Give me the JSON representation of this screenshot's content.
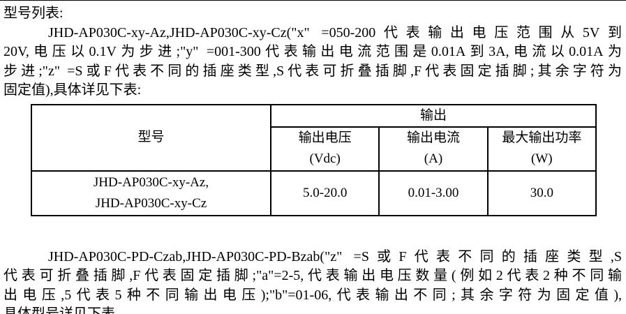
{
  "doc": {
    "title": "型号列表:",
    "para1": {
      "lines": [
        "JHD-AP030C-xy-Az,JHD-AP030C-xy-Cz(\"x\" =050-200代表输出电压范围从5V到",
        "20V,电压以0.1V为步进;\"y\" =001-300代表输出电流范围是0.01A到3A,电流以0.01A为",
        "步进;\"z\" =S或F代表不同的插座类型,S代表可折叠插脚,F代表固定插脚;其余字符为",
        "固定值),具体详见下表:"
      ]
    },
    "para2": {
      "lines": [
        "JHD-AP030C-PD-Czab,JHD-AP030C-PD-Bzab(\"z\" =S或F代表不同的插座类型,S",
        "代表可折叠插脚,F代表固定插脚;\"a\"=2-5,代表输出电压数量(例如2代表2种不同输",
        "出电压,5代表5种不同输出电压);\"b\"=01-06,代表输出不同;其余字符为固定值),",
        "具体型号详见下表"
      ]
    }
  },
  "table": {
    "model_header": "型号",
    "output_header": "输出",
    "columns": [
      {
        "line1": "输出电压",
        "line2": "(Vdc)"
      },
      {
        "line1": "输出电流",
        "line2": "(A)"
      },
      {
        "line1": "最大输出功率",
        "line2": "(W)"
      }
    ],
    "rows": [
      {
        "model_line1": "JHD-AP030C-xy-Az,",
        "model_line2": "JHD-AP030C-xy-Cz",
        "voltage": "5.0-20.0",
        "current": "0.01-3.00",
        "power": "30.0"
      }
    ]
  }
}
